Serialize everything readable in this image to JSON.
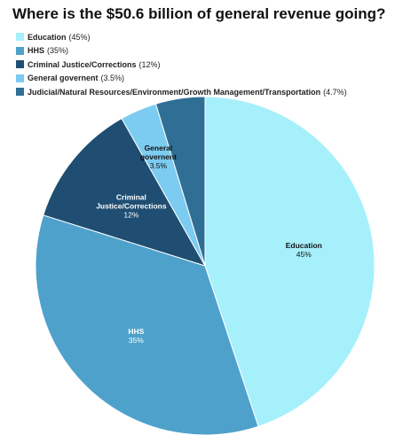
{
  "chart_data": {
    "type": "pie",
    "title": "Where is the $50.6 billion of general revenue going?",
    "legend_position": "top-left",
    "slices": [
      {
        "name": "Education",
        "value": 45,
        "label": "45%",
        "legend_pct": "(45%)",
        "color": "#a6f0fb",
        "label_lines": [
          "Education"
        ]
      },
      {
        "name": "HHS",
        "value": 35,
        "label": "35%",
        "legend_pct": "(35%)",
        "color": "#4ea1cb",
        "label_lines": [
          "HHS"
        ]
      },
      {
        "name": "Criminal Justice/Corrections",
        "value": 12,
        "label": "12%",
        "legend_pct": "(12%)",
        "color": "#1f4e72",
        "label_lines": [
          "Criminal",
          "Justice/Corrections"
        ]
      },
      {
        "name": "General governent",
        "value": 3.5,
        "label": "3.5%",
        "legend_pct": "(3.5%)",
        "color": "#7ccbf0",
        "label_lines": [
          "General",
          "governent"
        ]
      },
      {
        "name": "Judicial/Natural Resources/Environment/Growth Management/Transportation",
        "value": 4.7,
        "label": "",
        "legend_pct": "(4.7%)",
        "color": "#2f6f95",
        "label_lines": []
      }
    ]
  }
}
